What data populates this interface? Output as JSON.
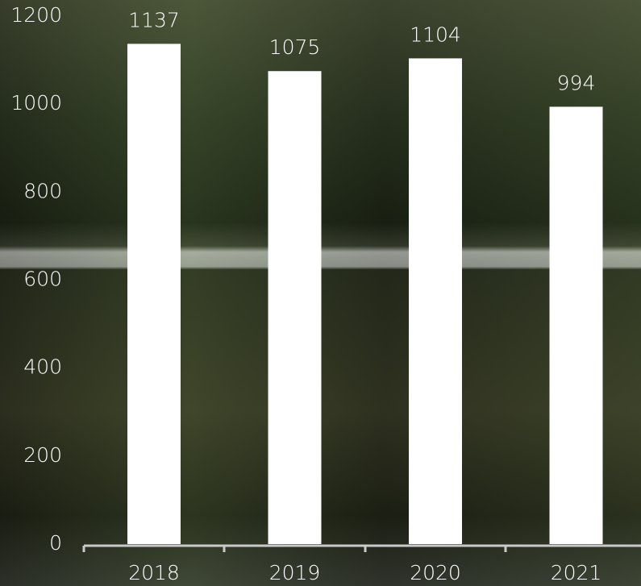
{
  "chart_data": {
    "type": "bar",
    "categories": [
      "2018",
      "2019",
      "2020",
      "2021"
    ],
    "values": [
      1137,
      1075,
      1104,
      994
    ],
    "color": "#ffffff",
    "ylim": [
      0,
      1200
    ],
    "yticks": [
      0,
      200,
      400,
      600,
      800,
      1000,
      1200
    ]
  }
}
